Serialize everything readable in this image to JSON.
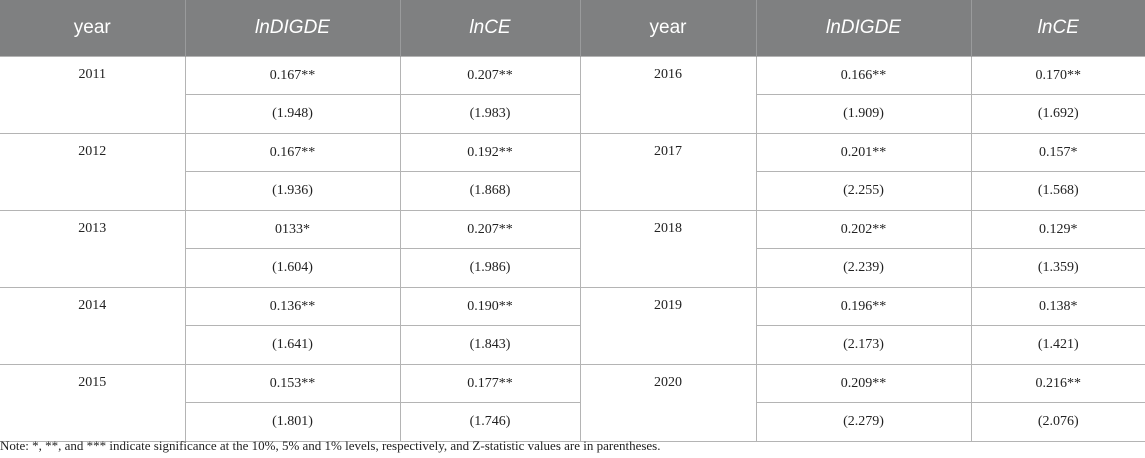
{
  "headers": [
    "year",
    "lnDIGDE",
    "lnCE",
    "year",
    "lnDIGDE",
    "lnCE"
  ],
  "rows": [
    {
      "left": {
        "year": "2011",
        "dig_coef": "0.167**",
        "ce_coef": "0.207**",
        "dig_z": "(1.948)",
        "ce_z": "(1.983)"
      },
      "right": {
        "year": "2016",
        "dig_coef": "0.166**",
        "ce_coef": "0.170**",
        "dig_z": "(1.909)",
        "ce_z": "(1.692)"
      }
    },
    {
      "left": {
        "year": "2012",
        "dig_coef": "0.167**",
        "ce_coef": "0.192**",
        "dig_z": "(1.936)",
        "ce_z": "(1.868)"
      },
      "right": {
        "year": "2017",
        "dig_coef": "0.201**",
        "ce_coef": "0.157*",
        "dig_z": "(2.255)",
        "ce_z": "(1.568)"
      }
    },
    {
      "left": {
        "year": "2013",
        "dig_coef": "0133*",
        "ce_coef": "0.207**",
        "dig_z": "(1.604)",
        "ce_z": "(1.986)"
      },
      "right": {
        "year": "2018",
        "dig_coef": "0.202**",
        "ce_coef": "0.129*",
        "dig_z": "(2.239)",
        "ce_z": "(1.359)"
      }
    },
    {
      "left": {
        "year": "2014",
        "dig_coef": "0.136**",
        "ce_coef": "0.190**",
        "dig_z": "(1.641)",
        "ce_z": "(1.843)"
      },
      "right": {
        "year": "2019",
        "dig_coef": "0.196**",
        "ce_coef": "0.138*",
        "dig_z": "(2.173)",
        "ce_z": "(1.421)"
      }
    },
    {
      "left": {
        "year": "2015",
        "dig_coef": "0.153**",
        "ce_coef": "0.177**",
        "dig_z": "(1.801)",
        "ce_z": "(1.746)"
      },
      "right": {
        "year": "2020",
        "dig_coef": "0.209**",
        "ce_coef": "0.216**",
        "dig_z": "(2.279)",
        "ce_z": "(2.076)"
      }
    }
  ],
  "note": "Note: *, **, and *** indicate significance at the 10%, 5% and 1% levels, respectively, and Z-statistic values are in parentheses.",
  "colors": {
    "header_bg": "#7f8081",
    "header_text": "#ffffff",
    "rule": "#b4b4b4"
  }
}
